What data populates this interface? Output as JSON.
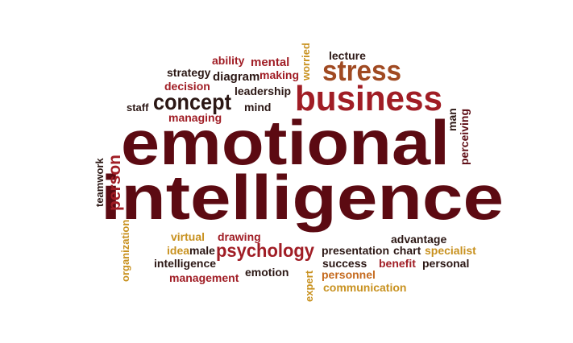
{
  "colors": {
    "dark": "#2b1714",
    "maroon": "#5c0a12",
    "red": "#a01d25",
    "brown": "#a04a22",
    "gold": "#c8911f",
    "orange": "#c56a1e"
  },
  "words": [
    {
      "key": "emotional",
      "text": "emotional"
    },
    {
      "key": "intelligence_big",
      "text": "intelligence"
    },
    {
      "key": "business",
      "text": "business"
    },
    {
      "key": "stress",
      "text": "stress"
    },
    {
      "key": "concept",
      "text": "concept"
    },
    {
      "key": "psychology",
      "text": "psychology"
    },
    {
      "key": "person",
      "text": "person"
    },
    {
      "key": "teamwork",
      "text": "teamwork"
    },
    {
      "key": "organization",
      "text": "organization"
    },
    {
      "key": "worried",
      "text": "worried"
    },
    {
      "key": "expert",
      "text": "expert"
    },
    {
      "key": "man",
      "text": "man"
    },
    {
      "key": "perceiving",
      "text": "perceiving"
    },
    {
      "key": "ability",
      "text": "ability"
    },
    {
      "key": "mental",
      "text": "mental"
    },
    {
      "key": "strategy",
      "text": "strategy"
    },
    {
      "key": "diagram",
      "text": "diagram"
    },
    {
      "key": "making",
      "text": "making"
    },
    {
      "key": "lecture",
      "text": "lecture"
    },
    {
      "key": "decision",
      "text": "decision"
    },
    {
      "key": "leadership",
      "text": "leadership"
    },
    {
      "key": "staff",
      "text": "staff"
    },
    {
      "key": "mind",
      "text": "mind"
    },
    {
      "key": "managing",
      "text": "managing"
    },
    {
      "key": "virtual",
      "text": "virtual"
    },
    {
      "key": "drawing",
      "text": "drawing"
    },
    {
      "key": "idea",
      "text": "idea"
    },
    {
      "key": "male",
      "text": "male"
    },
    {
      "key": "intelligence_small",
      "text": "intelligence"
    },
    {
      "key": "management",
      "text": "management"
    },
    {
      "key": "emotion",
      "text": "emotion"
    },
    {
      "key": "advantage",
      "text": "advantage"
    },
    {
      "key": "presentation",
      "text": "presentation"
    },
    {
      "key": "chart",
      "text": "chart"
    },
    {
      "key": "specialist",
      "text": "specialist"
    },
    {
      "key": "success",
      "text": "success"
    },
    {
      "key": "benefit",
      "text": "benefit"
    },
    {
      "key": "personal",
      "text": "personal"
    },
    {
      "key": "personnel",
      "text": "personnel"
    },
    {
      "key": "communication",
      "text": "communication"
    }
  ]
}
